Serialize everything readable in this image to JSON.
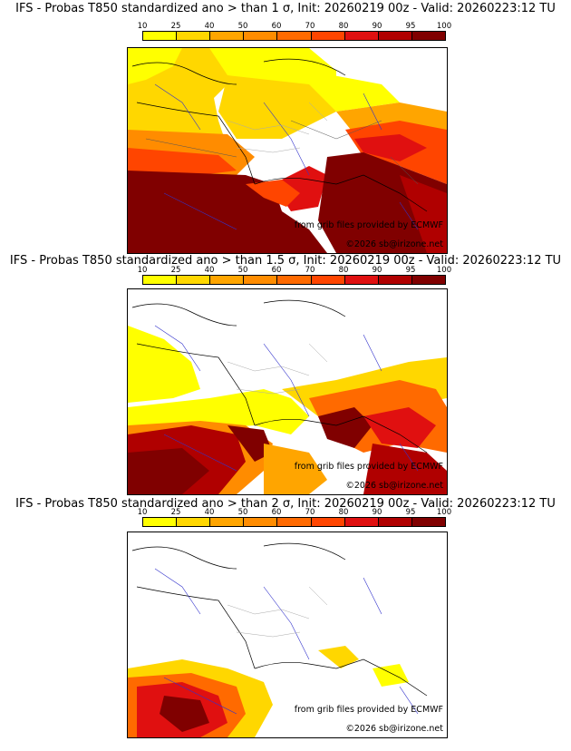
{
  "colorbar": {
    "ticks": [
      "10",
      "25",
      "40",
      "50",
      "60",
      "70",
      "80",
      "90",
      "95",
      "100"
    ],
    "colors": [
      "#ffff00",
      "#ffd700",
      "#ffa500",
      "#ff8c00",
      "#ff6a00",
      "#ff4500",
      "#e01010",
      "#b00000",
      "#800000"
    ]
  },
  "panels": [
    {
      "title": "IFS - Probas T850  standardized ano > than 1 σ, Init: 20260219 00z - Valid: 20260223:12 TU",
      "credit_source": "from grib files provided by ECMWF",
      "credit_copy": "©2026 sb@irizone.net"
    },
    {
      "title": "IFS - Probas T850  standardized ano > than 1.5 σ, Init: 20260219 00z - Valid: 20260223:12 TU",
      "credit_source": "from grib files provided by ECMWF",
      "credit_copy": "©2026 sb@irizone.net"
    },
    {
      "title": "IFS - Probas T850  standardized ano > than 2 σ, Init: 20260219 00z - Valid: 20260223:12 TU",
      "credit_source": "from grib files provided by ECMWF",
      "credit_copy": "©2026 sb@irizone.net"
    }
  ]
}
